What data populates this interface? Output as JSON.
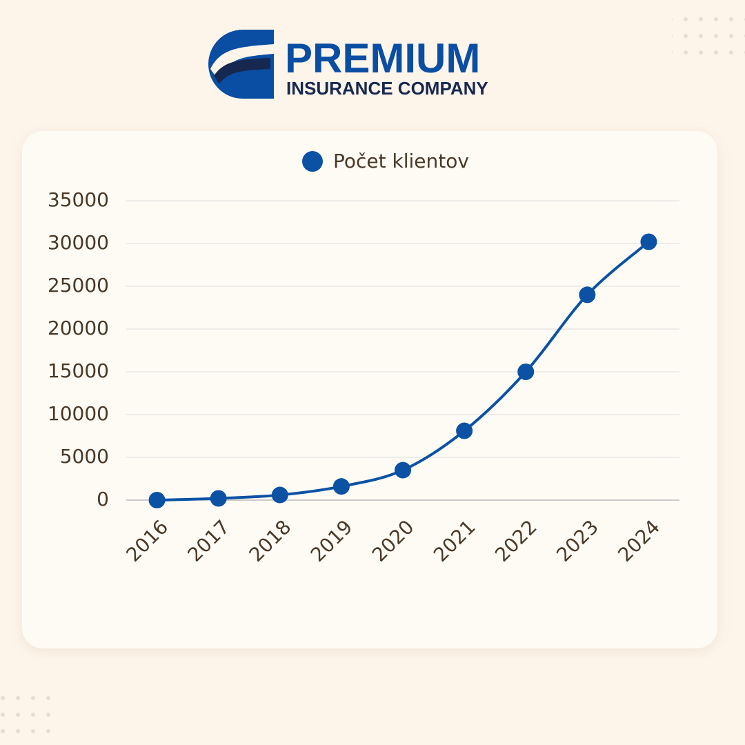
{
  "logo": {
    "name": "PREMIUM",
    "subtitle": "INSURANCE COMPANY"
  },
  "chart_data": {
    "type": "line",
    "categories": [
      "2016",
      "2017",
      "2018",
      "2019",
      "2020",
      "2021",
      "2022",
      "2023",
      "2024"
    ],
    "series": [
      {
        "name": "Počet klientov",
        "color": "#0b52a5",
        "values": [
          0,
          200,
          600,
          1600,
          3500,
          8100,
          15000,
          24000,
          30200
        ]
      }
    ],
    "ylim": [
      0,
      35000
    ],
    "yticks": [
      0,
      5000,
      10000,
      15000,
      20000,
      25000,
      30000,
      35000
    ],
    "grid": true,
    "smooth": true,
    "legend": "top"
  }
}
